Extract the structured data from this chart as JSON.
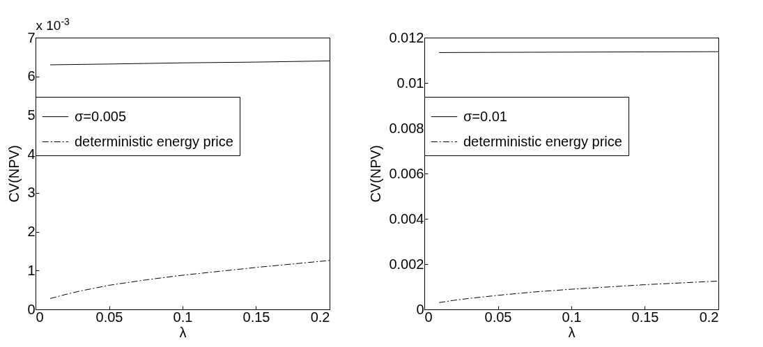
{
  "chart_data": [
    {
      "type": "line",
      "xlabel": "λ",
      "ylabel": "CV(NPV)",
      "annotations": [
        "x 10$^{-3}$"
      ],
      "xlim": [
        0,
        0.2
      ],
      "xticks": [
        0,
        0.05,
        0.1,
        0.15,
        0.2
      ],
      "ylim": [
        0,
        7
      ],
      "yticks": [
        0,
        1,
        2,
        3,
        4,
        5,
        6,
        7
      ],
      "grid": false,
      "legend": "top left",
      "series": [
        {
          "name": "σ=0.005",
          "color": "#000000",
          "line_style": "solid",
          "x": [
            0.01,
            0.05,
            0.1,
            0.15,
            0.2
          ],
          "values": [
            6.3,
            6.32,
            6.35,
            6.37,
            6.4
          ]
        },
        {
          "name": "deterministic energy price",
          "color": "#000000",
          "line_style": "dashdot",
          "x": [
            0.01,
            0.02,
            0.03,
            0.05,
            0.075,
            0.1,
            0.125,
            0.15,
            0.175,
            0.2
          ],
          "values": [
            0.28,
            0.38,
            0.47,
            0.62,
            0.76,
            0.88,
            0.98,
            1.08,
            1.17,
            1.26
          ]
        }
      ]
    },
    {
      "type": "line",
      "xlabel": "λ",
      "ylabel": "CV(NPV)",
      "xlim": [
        0,
        0.2
      ],
      "xticks": [
        0,
        0.05,
        0.1,
        0.15,
        0.2
      ],
      "ylim": [
        0,
        0.012
      ],
      "yticks": [
        0,
        0.002,
        0.004,
        0.006,
        0.008,
        0.01,
        0.012
      ],
      "grid": false,
      "legend": "top left",
      "series": [
        {
          "name": "σ=0.01",
          "color": "#000000",
          "line_style": "solid",
          "x": [
            0.01,
            0.05,
            0.1,
            0.15,
            0.2
          ],
          "values": [
            0.01134,
            0.01135,
            0.01136,
            0.01137,
            0.01138
          ]
        },
        {
          "name": "deterministic energy price",
          "color": "#000000",
          "line_style": "dashdot",
          "x": [
            0.01,
            0.02,
            0.03,
            0.05,
            0.075,
            0.1,
            0.125,
            0.15,
            0.175,
            0.2
          ],
          "values": [
            0.0003,
            0.0004,
            0.00048,
            0.00062,
            0.00077,
            0.00089,
            0.00099,
            0.00109,
            0.00117,
            0.00125
          ]
        }
      ]
    }
  ]
}
